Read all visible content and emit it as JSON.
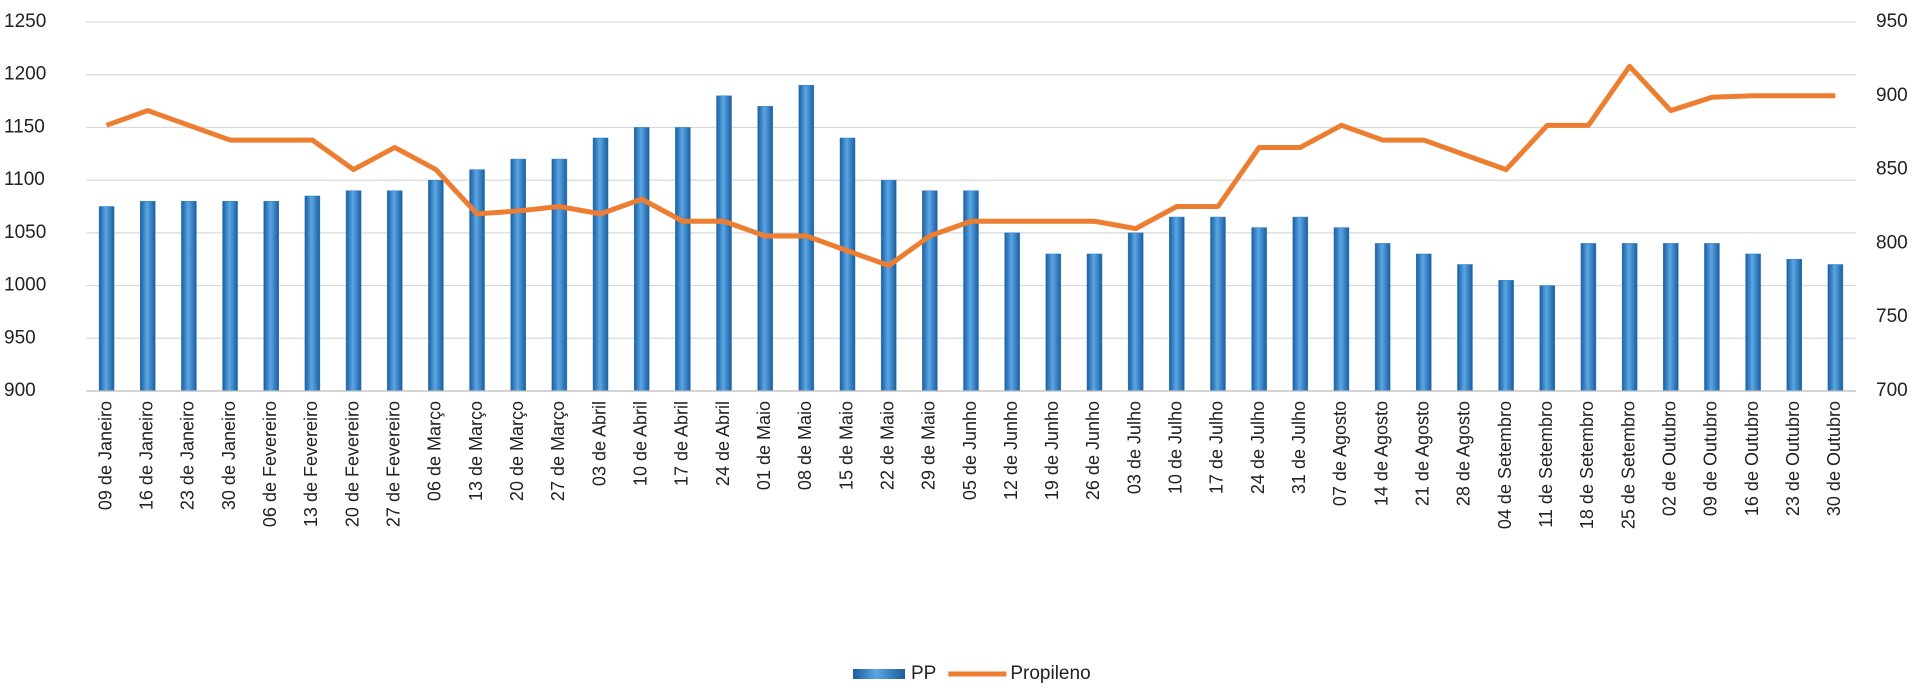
{
  "chart_data": {
    "type": "bar_line",
    "categories": [
      "09 de Janeiro",
      "16 de Janeiro",
      "23 de Janeiro",
      "30 de Janeiro",
      "06 de Fevereiro",
      "13 de Fevereiro",
      "20 de Fevereiro",
      "27 de Fevereiro",
      "06 de Março",
      "13 de Março",
      "20 de Março",
      "27 de Março",
      "03 de Abril",
      "10 de Abril",
      "17 de Abril",
      "24 de Abril",
      "01 de Maio",
      "08 de Maio",
      "15 de Maio",
      "22 de Maio",
      "29 de Maio",
      "05 de Junho",
      "12 de Junho",
      "19 de Junho",
      "26 de Junho",
      "03 de Julho",
      "10 de Julho",
      "17 de Julho",
      "24 de Julho",
      "31 de Julho",
      "07 de Agosto",
      "14 de Agosto",
      "21 de Agosto",
      "28 de Agosto",
      "04 de Setembro",
      "11 de Setembro",
      "18 de Setembro",
      "25 de Setembro",
      "02 de Outubro",
      "09 de Outubro",
      "16 de Outubro",
      "23 de Outubro",
      "30 de Outubro"
    ],
    "series": [
      {
        "name": "PP",
        "type": "bar",
        "color": "#2f7fc8",
        "values": [
          1075,
          1080,
          1080,
          1080,
          1080,
          1085,
          1090,
          1090,
          1100,
          1110,
          1120,
          1120,
          1140,
          1150,
          1150,
          1180,
          1170,
          1190,
          1140,
          1100,
          1090,
          1090,
          1050,
          1030,
          1030,
          1050,
          1065,
          1065,
          1055,
          1065,
          1055,
          1040,
          1030,
          1020,
          1005,
          1000,
          1040,
          1040,
          1040,
          1040,
          1030,
          1025,
          1020
        ]
      },
      {
        "name": "Propileno",
        "type": "line",
        "axis": "y2",
        "color": "#ed7d31",
        "values": [
          880,
          890,
          880,
          870,
          870,
          870,
          850,
          865,
          850,
          820,
          822,
          825,
          820,
          830,
          815,
          815,
          805,
          805,
          795,
          785,
          805,
          815,
          815,
          815,
          815,
          810,
          825,
          825,
          865,
          865,
          880,
          870,
          870,
          860,
          850,
          880,
          880,
          920,
          890,
          899,
          900,
          900,
          900
        ]
      }
    ],
    "ylim": [
      900,
      1250
    ],
    "yticks": [
      900,
      950,
      1000,
      1050,
      1100,
      1150,
      1200,
      1250
    ],
    "y2lim": [
      700,
      950
    ],
    "y2ticks": [
      700,
      750,
      800,
      850,
      900,
      950
    ],
    "grid": true,
    "legend": "bottom"
  }
}
